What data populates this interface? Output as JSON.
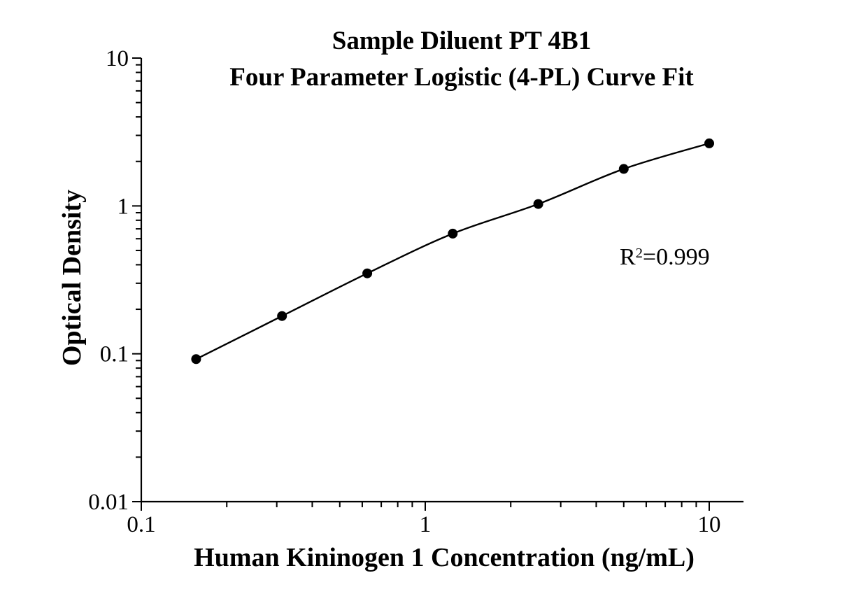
{
  "header": {
    "title_line1": "Sample Diluent PT 4B1",
    "title_line2": "Four Parameter Logistic (4-PL) Curve Fit"
  },
  "labels": {
    "x_axis": "Human Kininogen 1 Concentration (ng/mL)",
    "y_axis": "Optical Density"
  },
  "annotation": {
    "r_label": "R",
    "r_exponent": "2",
    "r_rest": "=0.999"
  },
  "chart_data": {
    "type": "scatter",
    "subtype": "4-PL standard curve with fitted line",
    "title": "Sample Diluent PT 4B1 — Four Parameter Logistic (4-PL) Curve Fit",
    "xlabel": "Human Kininogen 1 Concentration (ng/mL)",
    "ylabel": "Optical Density",
    "x_scale": "log",
    "y_scale": "log",
    "xlim": [
      0.1,
      13
    ],
    "ylim": [
      0.01,
      10
    ],
    "x_ticks": {
      "values": [
        0.1,
        1,
        10
      ],
      "labels": [
        "0.1",
        "1",
        "10"
      ]
    },
    "y_ticks": {
      "values": [
        0.01,
        0.1,
        1,
        10
      ],
      "labels": [
        "0.01",
        "0.1",
        "1",
        "10"
      ]
    },
    "points": {
      "x": [
        0.156,
        0.313,
        0.625,
        1.25,
        2.5,
        5,
        10
      ],
      "y": [
        0.092,
        0.18,
        0.35,
        0.65,
        1.03,
        1.78,
        2.65
      ]
    },
    "annotation": "R²=0.999",
    "grid": false,
    "legend_position": "none",
    "marker": {
      "shape": "circle",
      "color": "#000000"
    },
    "line": {
      "color": "#000000"
    },
    "background_color": "#ffffff",
    "text_color": "#000000"
  }
}
